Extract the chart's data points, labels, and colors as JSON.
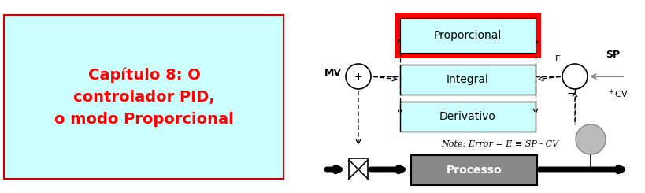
{
  "fig_w": 8.19,
  "fig_h": 2.45,
  "title_lines": [
    "Capítulo 8: O",
    "controlador PID,",
    "o modo Proporcional"
  ],
  "title_color": "#FF0000",
  "title_box_bg": "#CCFFFF",
  "title_box_edge": "#CC0000",
  "note_text": "Note: Error = E ≡ SP - CV"
}
